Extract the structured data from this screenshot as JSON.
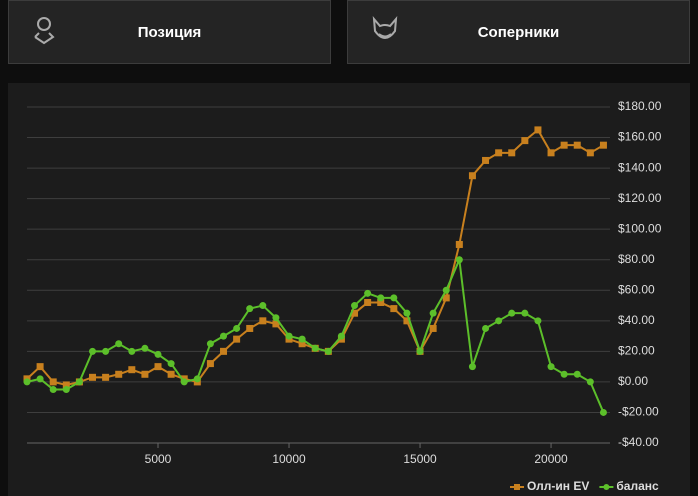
{
  "tabs": [
    {
      "label": "Позиция"
    },
    {
      "label": "Соперники"
    }
  ],
  "chart_data": {
    "type": "line",
    "legend": "bottom-right",
    "grid": true,
    "xlim": [
      0,
      22250
    ],
    "xticks": [
      5000,
      10000,
      15000,
      20000
    ],
    "ylim": [
      -40,
      180
    ],
    "yticks": [
      {
        "value": -40,
        "label": "-$40.00"
      },
      {
        "value": -20,
        "label": "-$20.00"
      },
      {
        "value": 0,
        "label": "$0.00"
      },
      {
        "value": 20,
        "label": "$20.00"
      },
      {
        "value": 40,
        "label": "$40.00"
      },
      {
        "value": 60,
        "label": "$60.00"
      },
      {
        "value": 80,
        "label": "$80.00"
      },
      {
        "value": 100,
        "label": "$100.00"
      },
      {
        "value": 120,
        "label": "$120.00"
      },
      {
        "value": 140,
        "label": "$140.00"
      },
      {
        "value": 160,
        "label": "$160.00"
      },
      {
        "value": 180,
        "label": "$180.00"
      }
    ],
    "x": [
      0,
      500,
      1000,
      1500,
      2000,
      2500,
      3000,
      3500,
      4000,
      4500,
      5000,
      5500,
      6000,
      6500,
      7000,
      7500,
      8000,
      8500,
      9000,
      9500,
      10000,
      10500,
      11000,
      11500,
      12000,
      12500,
      13000,
      13500,
      14000,
      14500,
      15000,
      15500,
      16000,
      16500,
      17000,
      17500,
      18000,
      18500,
      19000,
      19500,
      20000,
      20500,
      21000,
      21500,
      22000
    ],
    "series": [
      {
        "name": "Олл-ин EV",
        "color": "#c8801e",
        "marker": "square",
        "values": [
          2,
          10,
          0,
          -2,
          0,
          3,
          3,
          5,
          8,
          5,
          10,
          5,
          2,
          0,
          12,
          20,
          28,
          35,
          40,
          38,
          28,
          25,
          22,
          20,
          28,
          45,
          52,
          52,
          48,
          40,
          20,
          35,
          55,
          90,
          135,
          145,
          150,
          150,
          158,
          165,
          150,
          155,
          155,
          150,
          155
        ]
      },
      {
        "name": "баланс",
        "color": "#5cbf2a",
        "marker": "circle",
        "values": [
          0,
          2,
          -5,
          -5,
          0,
          20,
          20,
          25,
          20,
          22,
          18,
          12,
          0,
          2,
          25,
          30,
          35,
          48,
          50,
          42,
          30,
          28,
          22,
          20,
          30,
          50,
          58,
          55,
          55,
          45,
          20,
          45,
          60,
          80,
          10,
          35,
          40,
          45,
          45,
          40,
          10,
          5,
          5,
          0,
          -20
        ]
      }
    ]
  }
}
